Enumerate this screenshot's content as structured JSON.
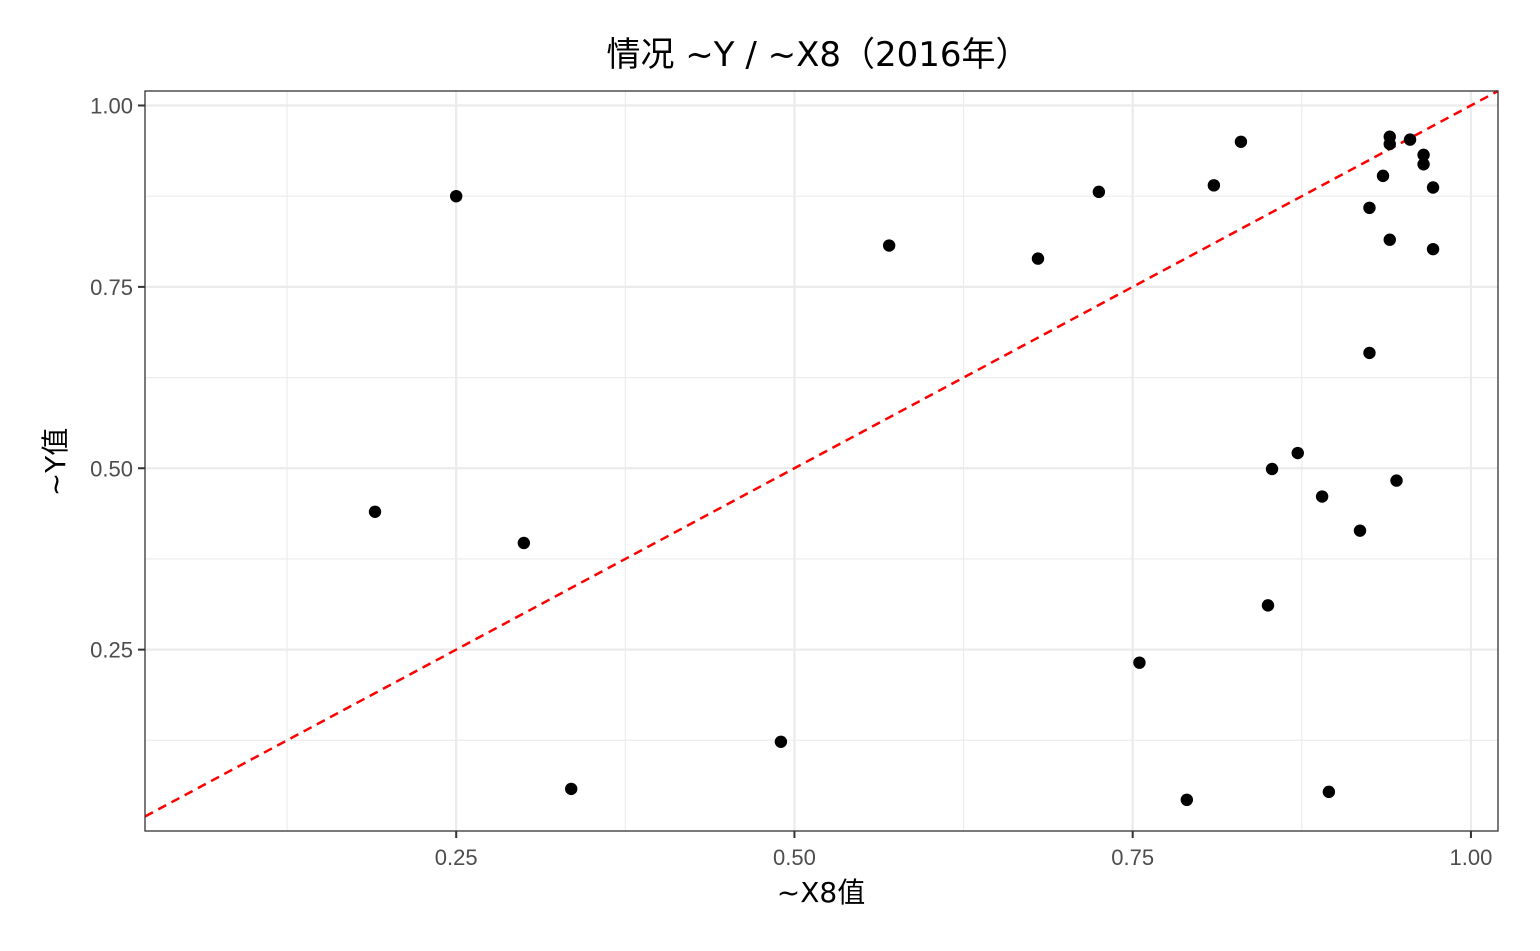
{
  "chart_data": {
    "type": "scatter",
    "title": "情况 ~Y / ~X8（2016年）",
    "xlabel": "~X8值",
    "ylabel": "~Y值",
    "xlim": [
      0.02,
      1.02
    ],
    "ylim": [
      0.0,
      1.02
    ],
    "x_ticks": [
      {
        "value": 0.25,
        "label": "0.25"
      },
      {
        "value": 0.5,
        "label": "0.50"
      },
      {
        "value": 0.75,
        "label": "0.75"
      },
      {
        "value": 1.0,
        "label": "1.00"
      }
    ],
    "y_ticks": [
      {
        "value": 0.25,
        "label": "0.25"
      },
      {
        "value": 0.5,
        "label": "0.50"
      },
      {
        "value": 0.75,
        "label": "0.75"
      },
      {
        "value": 1.0,
        "label": "1.00"
      }
    ],
    "x_minor": [
      0.125,
      0.375,
      0.625,
      0.875
    ],
    "y_minor": [
      0.125,
      0.375,
      0.625,
      0.875
    ],
    "grid": true,
    "reference_line": {
      "type": "y=x",
      "color": "#ff0000",
      "style": "dashed"
    },
    "points": [
      {
        "x": 0.19,
        "y": 0.44
      },
      {
        "x": 0.25,
        "y": 0.875
      },
      {
        "x": 0.3,
        "y": 0.397
      },
      {
        "x": 0.335,
        "y": 0.058
      },
      {
        "x": 0.49,
        "y": 0.123
      },
      {
        "x": 0.57,
        "y": 0.807
      },
      {
        "x": 0.68,
        "y": 0.789
      },
      {
        "x": 0.725,
        "y": 0.881
      },
      {
        "x": 0.755,
        "y": 0.232
      },
      {
        "x": 0.79,
        "y": 0.043
      },
      {
        "x": 0.81,
        "y": 0.89
      },
      {
        "x": 0.83,
        "y": 0.95
      },
      {
        "x": 0.85,
        "y": 0.311
      },
      {
        "x": 0.853,
        "y": 0.499
      },
      {
        "x": 0.872,
        "y": 0.521
      },
      {
        "x": 0.89,
        "y": 0.461
      },
      {
        "x": 0.895,
        "y": 0.054
      },
      {
        "x": 0.918,
        "y": 0.414
      },
      {
        "x": 0.925,
        "y": 0.659
      },
      {
        "x": 0.925,
        "y": 0.859
      },
      {
        "x": 0.935,
        "y": 0.903
      },
      {
        "x": 0.94,
        "y": 0.815
      },
      {
        "x": 0.94,
        "y": 0.947
      },
      {
        "x": 0.94,
        "y": 0.957
      },
      {
        "x": 0.945,
        "y": 0.483
      },
      {
        "x": 0.955,
        "y": 0.953
      },
      {
        "x": 0.965,
        "y": 0.932
      },
      {
        "x": 0.965,
        "y": 0.919
      },
      {
        "x": 0.972,
        "y": 0.887
      },
      {
        "x": 0.972,
        "y": 0.802
      }
    ]
  }
}
